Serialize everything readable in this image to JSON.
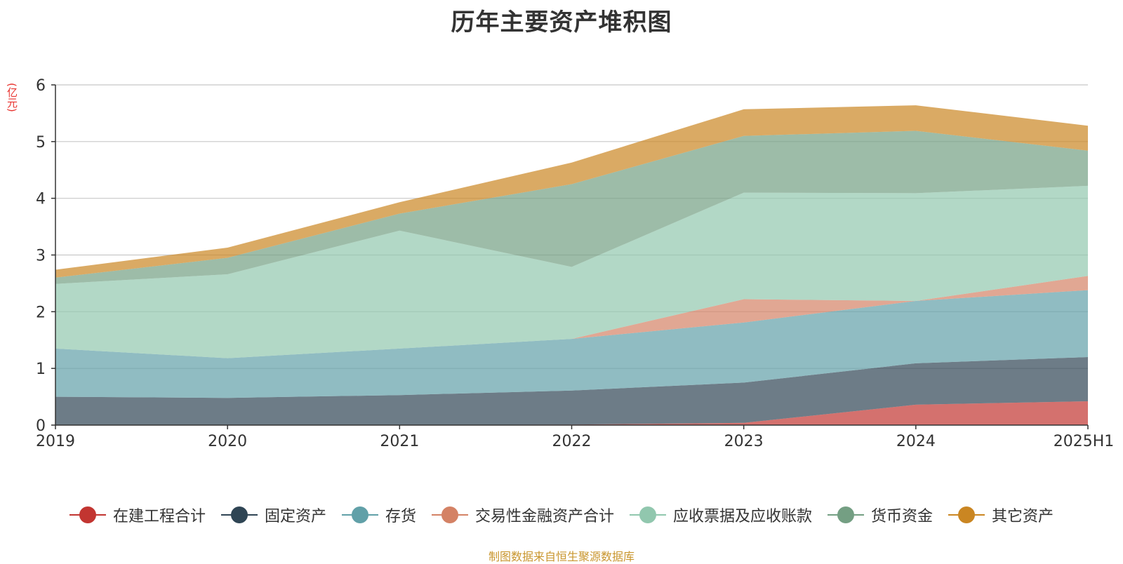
{
  "chart_data": {
    "type": "area",
    "stacked": true,
    "title": "历年主要资产堆积图",
    "unit_label": "(亿元)",
    "categories": [
      "2019",
      "2020",
      "2021",
      "2022",
      "2023",
      "2024",
      "2025H1"
    ],
    "yticks": [
      "0",
      "1",
      "2",
      "3",
      "4",
      "5",
      "6"
    ],
    "ylim": [
      0,
      6
    ],
    "grid": true,
    "legend_position": "bottom",
    "series": [
      {
        "name": "在建工程合计",
        "color": "#c23531",
        "values": [
          0.0,
          0.0,
          0.0,
          0.01,
          0.04,
          0.36,
          0.42
        ]
      },
      {
        "name": "固定资产",
        "color": "#2f4554",
        "values": [
          0.5,
          0.48,
          0.53,
          0.6,
          0.71,
          0.73,
          0.78
        ]
      },
      {
        "name": "存货",
        "color": "#61a0a8",
        "values": [
          0.85,
          0.7,
          0.82,
          0.91,
          1.06,
          1.1,
          1.18
        ]
      },
      {
        "name": "交易性金融资产合计",
        "color": "#d48265",
        "values": [
          0.0,
          0.0,
          0.0,
          0.0,
          0.41,
          0.0,
          0.25
        ]
      },
      {
        "name": "应收票据及应收账款",
        "color": "#91c7ae",
        "values": [
          1.14,
          1.48,
          2.08,
          1.27,
          1.88,
          1.9,
          1.59
        ]
      },
      {
        "name": "货币资金",
        "color": "#749f83",
        "values": [
          0.11,
          0.29,
          0.3,
          1.46,
          1.0,
          1.1,
          0.62
        ]
      },
      {
        "name": "其它资产",
        "color": "#ca8622",
        "values": [
          0.14,
          0.18,
          0.2,
          0.38,
          0.47,
          0.45,
          0.44
        ]
      }
    ]
  },
  "footer": {
    "source": "制图数据来自恒生聚源数据库"
  }
}
